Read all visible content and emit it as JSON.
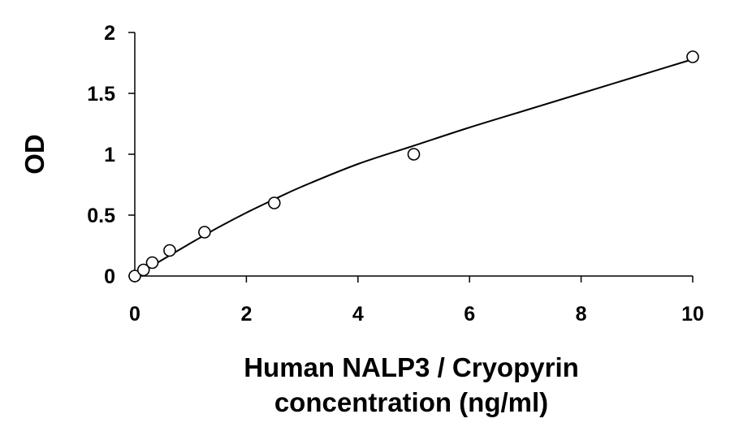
{
  "chart_data": {
    "type": "scatter",
    "title": "",
    "xlabel_lines": [
      "Human NALP3 / Cryopyrin",
      "concentration (ng/ml)"
    ],
    "ylabel": "OD",
    "xlim": [
      0,
      10
    ],
    "ylim": [
      0,
      2
    ],
    "x_ticks": [
      0,
      2,
      4,
      6,
      8,
      10
    ],
    "y_ticks": [
      0,
      0.5,
      1,
      1.5,
      2
    ],
    "grid": false,
    "legend": "none",
    "series": [
      {
        "x": [
          0,
          0.156,
          0.313,
          0.625,
          1.25,
          2.5,
          5,
          10
        ],
        "y": [
          0.0,
          0.05,
          0.11,
          0.21,
          0.36,
          0.6,
          1.0,
          1.8
        ]
      }
    ],
    "fit_curve": {
      "x": [
        0,
        0.5,
        1,
        1.5,
        2,
        2.5,
        3,
        4,
        5,
        6,
        7,
        8,
        9,
        10
      ],
      "y": [
        0.0,
        0.135,
        0.27,
        0.4,
        0.52,
        0.63,
        0.735,
        0.92,
        1.07,
        1.22,
        1.36,
        1.5,
        1.64,
        1.78
      ]
    }
  }
}
